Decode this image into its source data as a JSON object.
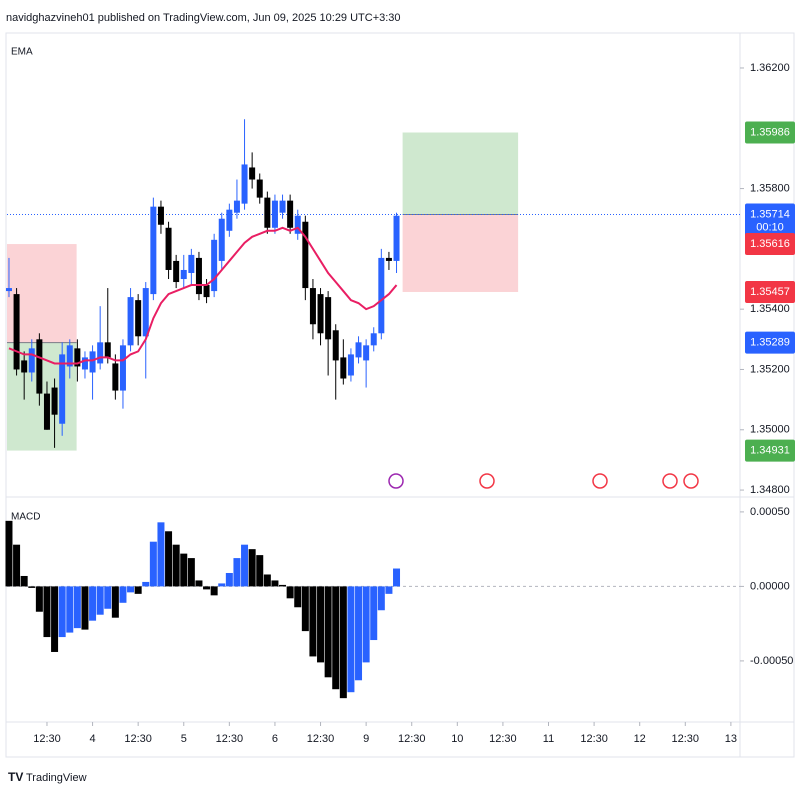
{
  "header": {
    "published": "navidghazvineh01 published on TradingView.com, Jun 09, 2025 10:29 UTC+3:30"
  },
  "footer": {
    "brand": "TradingView"
  },
  "chart_data": [
    {
      "type": "candlestick",
      "title": "EMA",
      "up_color": "#2962ff",
      "down_color": "#000000",
      "open": [
        1.3546,
        1.3545,
        1.3523,
        1.3519,
        1.353,
        1.3512,
        1.3514,
        1.3502,
        1.3521,
        1.3527,
        1.352,
        1.3519,
        1.3522,
        1.3529,
        1.3522,
        1.3513,
        1.3528,
        1.3543,
        1.3531,
        1.3545,
        1.3574,
        1.3567,
        1.3556,
        1.355,
        1.3552,
        1.3557,
        1.3548,
        1.3546,
        1.3556,
        1.3566,
        1.3572,
        1.3575,
        1.3587,
        1.3583,
        1.3577,
        1.3567,
        1.3572,
        1.3576,
        1.3565,
        1.3569,
        1.3547,
        1.3545,
        1.3544,
        1.3533,
        1.3524,
        1.3518,
        1.3524,
        1.3523,
        1.3528,
        1.3532,
        1.3557,
        1.3556
      ],
      "high": [
        1.3557,
        1.3547,
        1.3526,
        1.353,
        1.3532,
        1.3516,
        1.3517,
        1.3529,
        1.353,
        1.353,
        1.3526,
        1.3528,
        1.3541,
        1.3547,
        1.3525,
        1.353,
        1.3547,
        1.3545,
        1.3549,
        1.3577,
        1.3576,
        1.3569,
        1.3558,
        1.3558,
        1.356,
        1.3559,
        1.355,
        1.3565,
        1.3572,
        1.3575,
        1.3583,
        1.3603,
        1.3592,
        1.3585,
        1.3579,
        1.3578,
        1.3578,
        1.3578,
        1.3573,
        1.3571,
        1.355,
        1.3547,
        1.3546,
        1.3535,
        1.353,
        1.3527,
        1.3531,
        1.353,
        1.3534,
        1.356,
        1.3559,
        1.3572
      ],
      "low": [
        1.3544,
        1.3518,
        1.351,
        1.3516,
        1.3508,
        1.35,
        1.3494,
        1.3498,
        1.3517,
        1.3516,
        1.3517,
        1.351,
        1.352,
        1.3522,
        1.351,
        1.3507,
        1.3526,
        1.3528,
        1.3517,
        1.3543,
        1.3565,
        1.355,
        1.3547,
        1.3547,
        1.3548,
        1.3543,
        1.3542,
        1.3544,
        1.3553,
        1.3564,
        1.357,
        1.3573,
        1.358,
        1.3575,
        1.3565,
        1.3565,
        1.357,
        1.3565,
        1.3563,
        1.3543,
        1.353,
        1.3528,
        1.3518,
        1.351,
        1.3515,
        1.3516,
        1.3522,
        1.3514,
        1.3526,
        1.353,
        1.3553,
        1.3552
      ],
      "close": [
        1.3547,
        1.352,
        1.3519,
        1.3527,
        1.3512,
        1.35,
        1.3505,
        1.3525,
        1.3528,
        1.3521,
        1.3524,
        1.3526,
        1.3529,
        1.3524,
        1.3513,
        1.3528,
        1.3544,
        1.3531,
        1.3547,
        1.3574,
        1.3568,
        1.3553,
        1.3549,
        1.3553,
        1.3558,
        1.3545,
        1.3544,
        1.3563,
        1.357,
        1.3573,
        1.3576,
        1.3588,
        1.3583,
        1.3577,
        1.3567,
        1.3576,
        1.3576,
        1.3567,
        1.3571,
        1.3547,
        1.3535,
        1.3532,
        1.353,
        1.3523,
        1.3517,
        1.3525,
        1.3529,
        1.3528,
        1.3532,
        1.3557,
        1.3556,
        1.3571
      ],
      "ema": {
        "color": "#e91e63",
        "values": [
          1.3527,
          1.3526,
          1.3525,
          1.3525,
          1.3524,
          1.3523,
          1.3522,
          1.3522,
          1.3522,
          1.3522,
          1.3523,
          1.3523,
          1.3524,
          1.3524,
          1.3523,
          1.3523,
          1.3525,
          1.3526,
          1.353,
          1.3537,
          1.3542,
          1.3545,
          1.3546,
          1.3547,
          1.3548,
          1.3548,
          1.3548,
          1.355,
          1.3553,
          1.3556,
          1.3559,
          1.3562,
          1.3564,
          1.3565,
          1.3566,
          1.3566,
          1.3567,
          1.3566,
          1.3567,
          1.3564,
          1.356,
          1.3556,
          1.3552,
          1.3549,
          1.3546,
          1.3543,
          1.3542,
          1.354,
          1.3541,
          1.3543,
          1.3545,
          1.3548
        ]
      },
      "xlim": [
        -0.26,
        96.2
      ],
      "xticks": [
        {
          "value": 5,
          "label": "12:30"
        },
        {
          "value": 11,
          "label": "4"
        },
        {
          "value": 17,
          "label": "12:30"
        },
        {
          "value": 23,
          "label": "5"
        },
        {
          "value": 29,
          "label": "12:30"
        },
        {
          "value": 35,
          "label": "6"
        },
        {
          "value": 41,
          "label": "12:30"
        },
        {
          "value": 47,
          "label": "9"
        },
        {
          "value": 53,
          "label": "12:30"
        },
        {
          "value": 59,
          "label": "10"
        },
        {
          "value": 65,
          "label": "12:30"
        },
        {
          "value": 71,
          "label": "11"
        },
        {
          "value": 77,
          "label": "12:30"
        },
        {
          "value": 83,
          "label": "12"
        },
        {
          "value": 89,
          "label": "12:30"
        },
        {
          "value": 95,
          "label": "13"
        }
      ],
      "ylim": [
        1.34777,
        1.36316
      ],
      "yticks": [
        {
          "value": 1.362,
          "label": "1.36200"
        },
        {
          "value": 1.358,
          "label": "1.35800"
        },
        {
          "value": 1.354,
          "label": "1.35400"
        },
        {
          "value": 1.352,
          "label": "1.35200"
        },
        {
          "value": 1.35,
          "label": "1.35000"
        },
        {
          "value": 1.348,
          "label": "1.34800"
        }
      ],
      "positions": [
        {
          "x_start": -0.26,
          "x_end": 8.9,
          "entry": 1.35289,
          "stop": 1.35616,
          "target": 1.34931
        },
        {
          "x_start": 51.8,
          "x_end": 67,
          "entry": 1.35714,
          "stop": 1.35457,
          "target": 1.35986
        }
      ],
      "position_colors": {
        "target": "#cfe8cf",
        "stop": "#fbd3d6"
      },
      "price_labels": [
        {
          "value": 1.35986,
          "label": "1.35986",
          "color": "#4caf50"
        },
        {
          "value": 1.35714,
          "label": "1.35714",
          "color": "#2962ff",
          "countdown": "00:10"
        },
        {
          "value": 1.35616,
          "label": "1.35616",
          "color": "#f23645"
        },
        {
          "value": 1.35457,
          "label": "1.35457",
          "color": "#f23645"
        },
        {
          "value": 1.35289,
          "label": "1.35289",
          "color": "#2962ff"
        },
        {
          "value": 1.34931,
          "label": "1.34931",
          "color": "#4caf50"
        }
      ],
      "last_price_line": {
        "value": 1.35714,
        "color": "#2962ff"
      }
    },
    {
      "type": "histogram",
      "title": "MACD",
      "rising_color": "#2962ff",
      "falling_color": "#000000",
      "values": [
        0.00044,
        0.00028,
        7e-05,
        -1e-05,
        -0.00017,
        -0.00034,
        -0.00044,
        -0.00034,
        -0.00031,
        -0.00028,
        -0.00029,
        -0.00023,
        -0.00019,
        -0.00015,
        -0.00021,
        -0.00011,
        -4e-05,
        -5e-05,
        3e-05,
        0.0003,
        0.00043,
        0.00037,
        0.00028,
        0.00022,
        0.00019,
        4e-05,
        -2e-05,
        -6e-05,
        2e-05,
        9e-05,
        0.00019,
        0.00028,
        0.00025,
        0.00021,
        8e-05,
        4e-05,
        1e-05,
        -8e-05,
        -0.00014,
        -0.0003,
        -0.00047,
        -0.00051,
        -0.00061,
        -0.00069,
        -0.00075,
        -0.00071,
        -0.00063,
        -0.00051,
        -0.00036,
        -0.00016,
        -5e-05,
        0.00012
      ],
      "ylim": [
        -0.00091,
        0.0006
      ],
      "yticks": [
        {
          "value": 0.0005,
          "label": "0.00050"
        },
        {
          "value": 0,
          "label": "0.00000"
        },
        {
          "value": -0.0005,
          "label": "-0.00050"
        }
      ]
    }
  ]
}
